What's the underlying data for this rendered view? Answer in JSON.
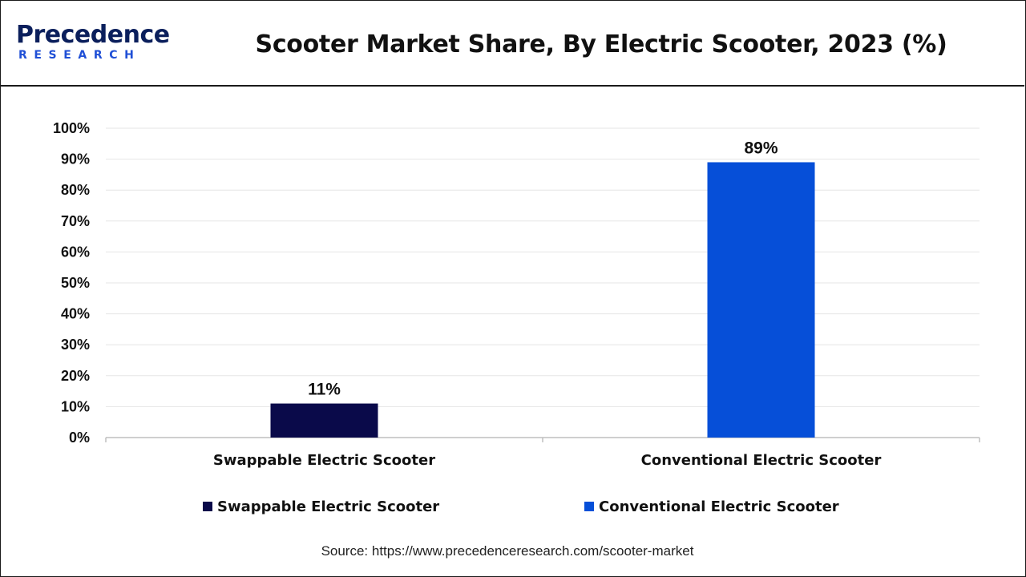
{
  "header": {
    "logo_main": "Precedence",
    "logo_sub": "RESEARCH",
    "title": "Scooter Market Share, By Electric Scooter, 2023 (%)"
  },
  "chart_data": {
    "type": "bar",
    "title": "Scooter Market Share, By Electric Scooter, 2023 (%)",
    "categories": [
      "Swappable Electric Scooter",
      "Conventional Electric Scooter"
    ],
    "values": [
      11,
      89
    ],
    "data_labels": [
      "11%",
      "89%"
    ],
    "colors": [
      "#0a0a4a",
      "#064fd8"
    ],
    "ylim": [
      0,
      100
    ],
    "yticks": [
      "0%",
      "10%",
      "20%",
      "30%",
      "40%",
      "50%",
      "60%",
      "70%",
      "80%",
      "90%",
      "100%"
    ],
    "grid": true,
    "legend_position": "bottom",
    "xlabel": "",
    "ylabel": ""
  },
  "legend": {
    "items": [
      {
        "label": "Swappable Electric Scooter",
        "color": "#0a0a4a"
      },
      {
        "label": "Conventional Electric Scooter",
        "color": "#064fd8"
      }
    ]
  },
  "footer": {
    "source": "Source: https://www.precedenceresearch.com/scooter-market"
  }
}
